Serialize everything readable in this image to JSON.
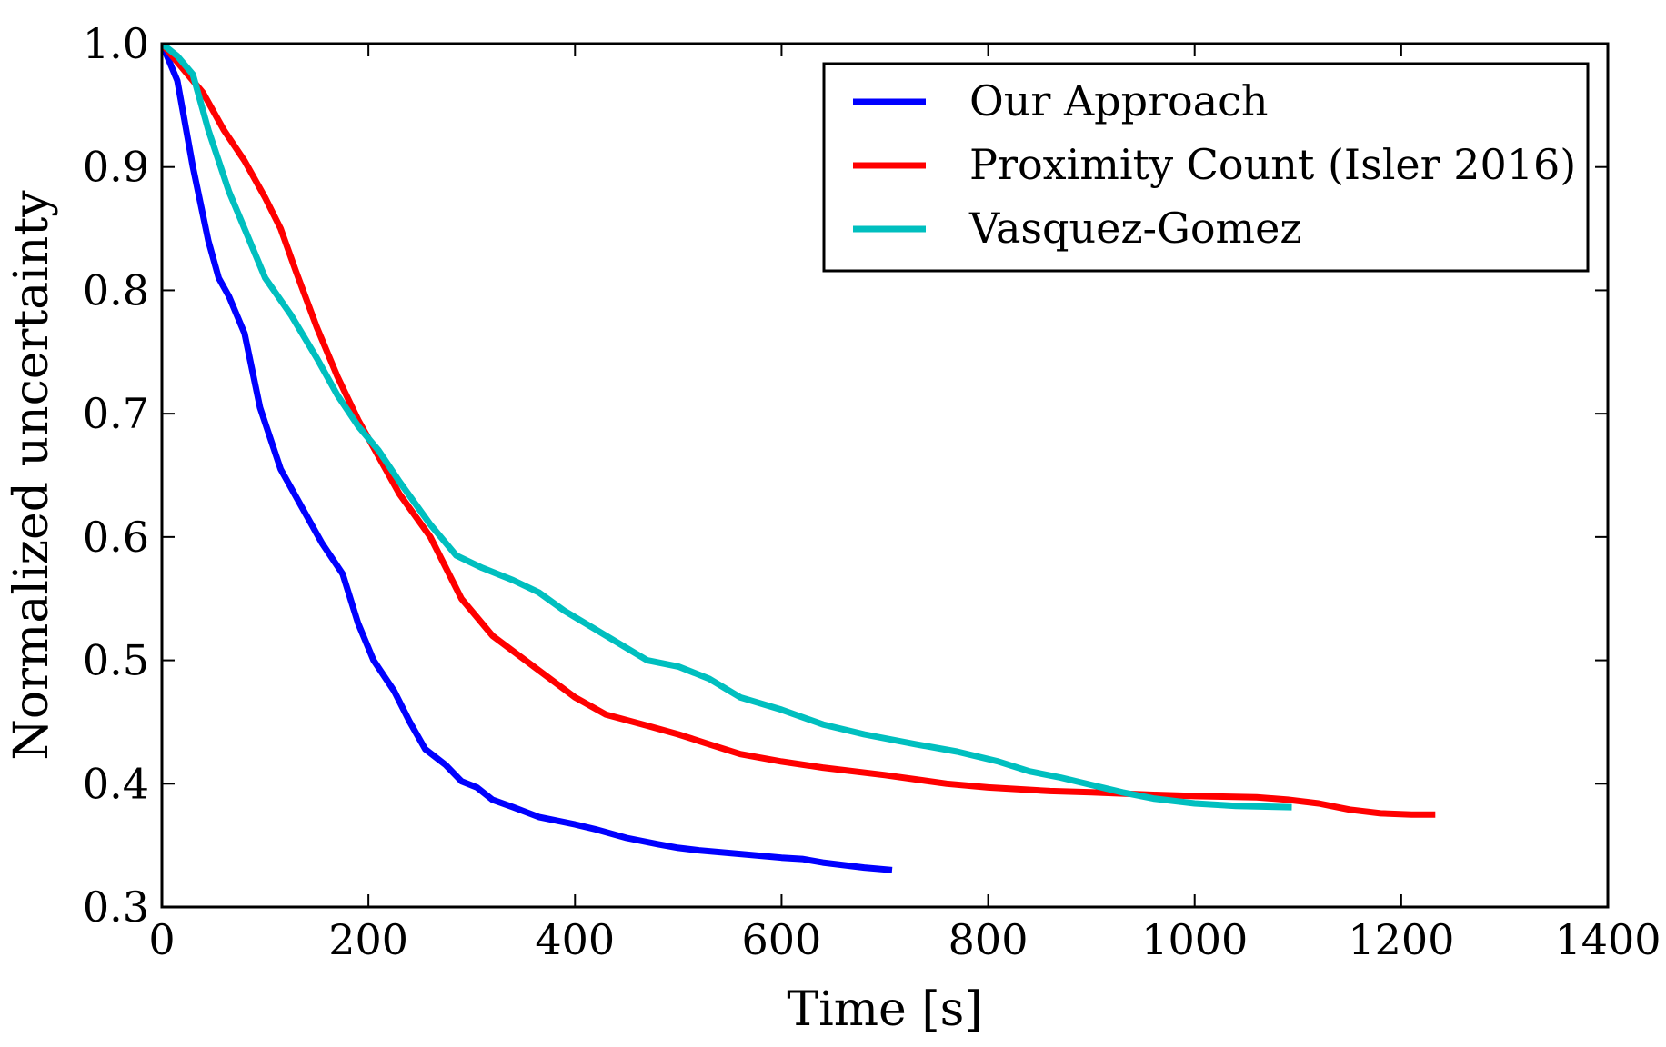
{
  "chart_data": {
    "type": "line",
    "title": "",
    "xlabel": "Time [s]",
    "ylabel": "Normalized uncertainty",
    "xlim": [
      0,
      1400
    ],
    "ylim": [
      0.3,
      1.0
    ],
    "xticks": [
      0,
      200,
      400,
      600,
      800,
      1000,
      1200,
      1400
    ],
    "xtick_labels": [
      "0",
      "200",
      "400",
      "600",
      "800",
      "1000",
      "1200",
      "1400"
    ],
    "yticks": [
      0.3,
      0.4,
      0.5,
      0.6,
      0.7,
      0.8,
      0.9,
      1.0
    ],
    "ytick_labels": [
      "0.3",
      "0.4",
      "0.5",
      "0.6",
      "0.7",
      "0.8",
      "0.9",
      "1.0"
    ],
    "grid": false,
    "legend": "top-right",
    "series": [
      {
        "name": "Our Approach",
        "color": "#0000ff",
        "x": [
          0,
          15,
          30,
          45,
          55,
          65,
          80,
          95,
          115,
          135,
          155,
          175,
          190,
          205,
          225,
          240,
          255,
          275,
          290,
          305,
          320,
          340,
          365,
          400,
          420,
          450,
          480,
          500,
          520,
          560,
          600,
          620,
          640,
          660,
          680,
          707
        ],
        "y": [
          1.0,
          0.97,
          0.9,
          0.84,
          0.81,
          0.795,
          0.765,
          0.705,
          0.655,
          0.625,
          0.595,
          0.57,
          0.53,
          0.5,
          0.475,
          0.45,
          0.428,
          0.415,
          0.402,
          0.397,
          0.387,
          0.381,
          0.373,
          0.367,
          0.363,
          0.356,
          0.351,
          0.348,
          0.346,
          0.343,
          0.34,
          0.339,
          0.336,
          0.334,
          0.332,
          0.33
        ]
      },
      {
        "name": "Proximity Count (Isler 2016)",
        "color": "#ff0000",
        "x": [
          0,
          20,
          40,
          60,
          80,
          100,
          115,
          130,
          150,
          170,
          190,
          210,
          230,
          260,
          290,
          320,
          360,
          400,
          430,
          470,
          500,
          530,
          560,
          600,
          640,
          700,
          760,
          800,
          860,
          900,
          960,
          1000,
          1060,
          1090,
          1120,
          1150,
          1180,
          1210,
          1233
        ],
        "y": [
          1.0,
          0.98,
          0.96,
          0.93,
          0.905,
          0.875,
          0.85,
          0.815,
          0.77,
          0.73,
          0.695,
          0.665,
          0.635,
          0.6,
          0.55,
          0.52,
          0.495,
          0.47,
          0.456,
          0.447,
          0.44,
          0.432,
          0.424,
          0.418,
          0.413,
          0.407,
          0.4,
          0.397,
          0.394,
          0.393,
          0.391,
          0.39,
          0.389,
          0.387,
          0.384,
          0.379,
          0.376,
          0.375,
          0.375
        ]
      },
      {
        "name": "Vasquez-Gomez",
        "color": "#00bfbf",
        "x": [
          0,
          15,
          30,
          45,
          65,
          80,
          100,
          125,
          150,
          170,
          190,
          210,
          230,
          260,
          285,
          310,
          340,
          365,
          390,
          420,
          440,
          470,
          500,
          530,
          560,
          600,
          640,
          680,
          730,
          770,
          810,
          840,
          870,
          900,
          930,
          960,
          1000,
          1040,
          1094
        ],
        "y": [
          1.0,
          0.99,
          0.975,
          0.93,
          0.88,
          0.85,
          0.81,
          0.78,
          0.745,
          0.715,
          0.69,
          0.67,
          0.645,
          0.61,
          0.585,
          0.575,
          0.565,
          0.555,
          0.54,
          0.525,
          0.515,
          0.5,
          0.495,
          0.485,
          0.47,
          0.46,
          0.448,
          0.44,
          0.432,
          0.426,
          0.418,
          0.41,
          0.405,
          0.399,
          0.393,
          0.388,
          0.384,
          0.382,
          0.381
        ]
      }
    ]
  }
}
